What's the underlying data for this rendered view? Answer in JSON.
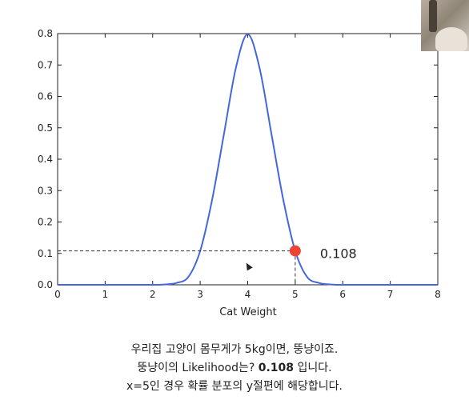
{
  "chart_data": {
    "type": "line",
    "xlabel": "Cat Weight",
    "ylabel": "",
    "xlim": [
      0,
      8
    ],
    "ylim": [
      0,
      0.8
    ],
    "xticks": [
      "0",
      "1",
      "2",
      "3",
      "4",
      "5",
      "6",
      "7",
      "8"
    ],
    "yticks": [
      "0.0",
      "0.1",
      "0.2",
      "0.3",
      "0.4",
      "0.5",
      "0.6",
      "0.7",
      "0.8"
    ],
    "grid": false,
    "series": [
      {
        "color": "#4466dd",
        "x": [
          0,
          0.5,
          1,
          1.5,
          2,
          2.25,
          2.5,
          2.75,
          3,
          3.25,
          3.5,
          3.75,
          4,
          4.25,
          4.5,
          4.75,
          5,
          5.25,
          5.5,
          5.75,
          6,
          6.5,
          7,
          7.5,
          8
        ],
        "y": [
          0.0,
          0.0,
          0.0,
          0.0,
          0.0,
          0.001,
          0.006,
          0.025,
          0.108,
          0.27,
          0.48,
          0.69,
          0.798,
          0.69,
          0.48,
          0.27,
          0.108,
          0.025,
          0.006,
          0.001,
          0.0,
          0.0,
          0.0,
          0.0,
          0.0
        ]
      }
    ],
    "highlight_point": {
      "x": 5,
      "y": 0.108,
      "label": "0.108",
      "color": "#ee4433"
    }
  },
  "caption": {
    "line1": "우리집 고양이 몸무게가 5kg이면, 뚱냥이죠.",
    "line2_prefix": "뚱냥이의 Likelihood는? ",
    "line2_bold": "0.108",
    "line2_suffix": " 입니다.",
    "line3": "x=5인 경우 확률 분포의 y절편에 해당합니다."
  }
}
